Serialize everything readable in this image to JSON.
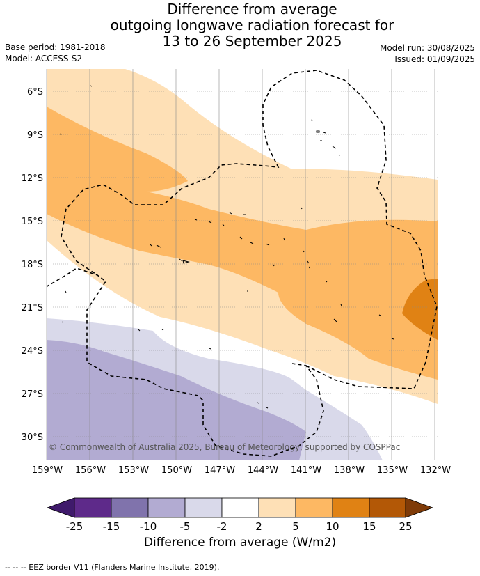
{
  "header": {
    "title_lines": [
      "Difference from average",
      "outgoing longwave radiation forecast for",
      "13 to 26 September 2025"
    ],
    "base_period": "Base period: 1981-2018",
    "model": "Model: ACCESS-S2",
    "model_run": "Model run: 30/08/2025",
    "issued": "Issued: 01/09/2025"
  },
  "map": {
    "lat_labels": [
      "6°S",
      "9°S",
      "12°S",
      "15°S",
      "18°S",
      "21°S",
      "24°S",
      "27°S",
      "30°S"
    ],
    "lon_labels": [
      "159°W",
      "156°W",
      "153°W",
      "150°W",
      "147°W",
      "144°W",
      "141°W",
      "138°W",
      "135°W",
      "132°W"
    ],
    "copyright": "© Commonwealth of Australia 2025, Bureau of Meteorology, supported by COSPPac",
    "colors": {
      "neg_5_2": "#d9d9ea",
      "neg_10_5": "#b2abd2",
      "pos_2_5": "#fee0b6",
      "pos_5_10": "#fdb863",
      "pos_10_15": "#e08214"
    }
  },
  "colorbar": {
    "tick_labels": [
      "-25",
      "-15",
      "-10",
      "-5",
      "-2",
      "2",
      "5",
      "10",
      "15",
      "25"
    ],
    "colors": [
      "#3f1a6b",
      "#5e2a8a",
      "#8073ac",
      "#b2abd2",
      "#d9d9ea",
      "#ffffff",
      "#fee0b6",
      "#fdb863",
      "#e08214",
      "#b35806",
      "#7f3b08"
    ],
    "title": "Difference from average (W/m2)"
  },
  "footer": "-- -- -- EEZ border V11 (Flanders Marine Institute, 2019)."
}
